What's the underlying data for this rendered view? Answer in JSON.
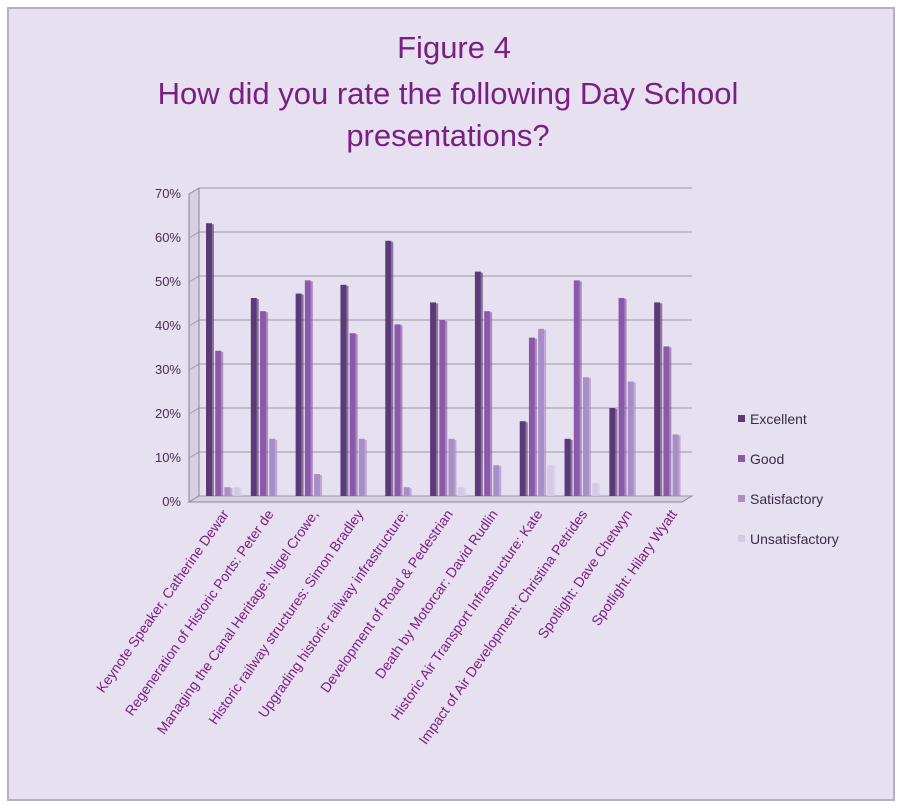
{
  "chart_data": {
    "type": "bar",
    "title": "Figure 4",
    "subtitle_lines": [
      "How did you rate the following Day School",
      "presentations?"
    ],
    "xlabel": "",
    "ylabel": "",
    "ylim": [
      0,
      70
    ],
    "ytick_labels": [
      "0%",
      "10%",
      "20%",
      "30%",
      "40%",
      "50%",
      "60%",
      "70%"
    ],
    "grid": true,
    "legend_position": "right",
    "categories": [
      "Keynote Speaker, Catherine Dewar",
      "Regeneration of Historic Ports: Peter de",
      "Managing the Canal Heritage: Nigel Crowe,",
      "Historic railway structures: Simon Bradley",
      "Upgrading historic railway infrastructure:",
      "Development of Road & Pedestrian",
      "Death by Motorcar: David Rudlin",
      "Historic Air Transport Infrastructure: Kate",
      "Impact of Air Development: Christina Petrides",
      "Spotlight: Dave Chetwyn",
      "Spotlight: Hilary Wyatt"
    ],
    "series": [
      {
        "name": "Excellent",
        "color": "#5b3a78",
        "values": [
          62,
          45,
          46,
          48,
          58,
          44,
          51,
          17,
          13,
          20,
          44
        ]
      },
      {
        "name": "Good",
        "color": "#8a5aa8",
        "values": [
          33,
          42,
          49,
          37,
          39,
          40,
          42,
          36,
          49,
          45,
          34
        ]
      },
      {
        "name": "Satisfactory",
        "color": "#a98dc6",
        "values": [
          2,
          13,
          5,
          13,
          2,
          13,
          7,
          38,
          27,
          26,
          14
        ]
      },
      {
        "name": "Unsatisfactory",
        "color": "#d6c9e6",
        "values": [
          2,
          0,
          0,
          0,
          0,
          2,
          0,
          7,
          3,
          0,
          0
        ]
      }
    ]
  },
  "colors": {
    "frame_bg": "#e7e0f0",
    "frame_border": "#b8b0c0",
    "grid": "#9e98a4",
    "axis": "#8a8490",
    "title": "#7a1f82"
  }
}
